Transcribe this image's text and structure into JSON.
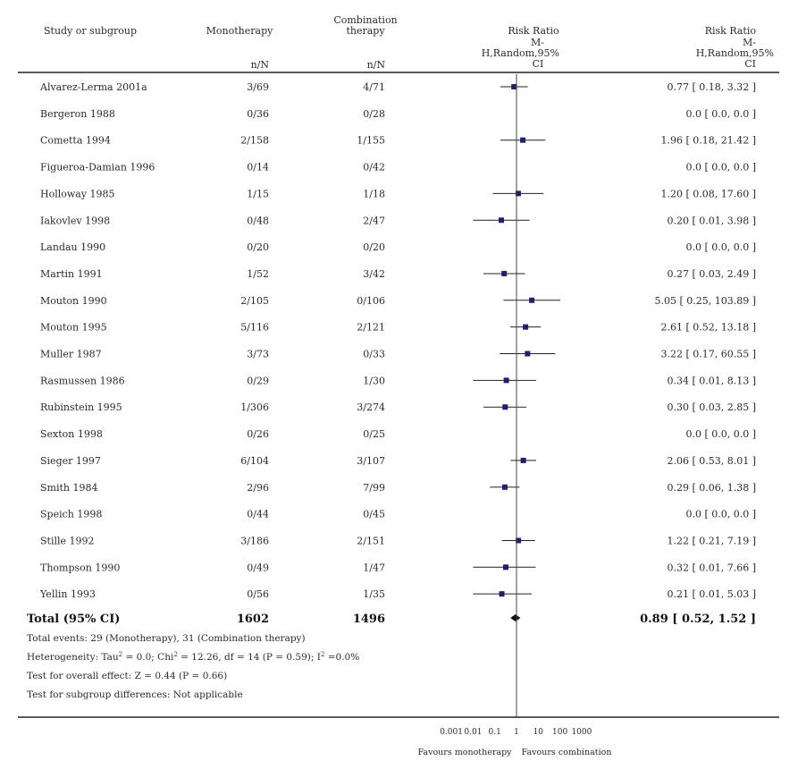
{
  "chart_data": {
    "type": "forest",
    "header": {
      "study": "Study or subgroup",
      "mono": "Monotherapy",
      "combo": [
        "Combination",
        "therapy"
      ],
      "rr_center": [
        "Risk Ratio",
        "M-",
        "H,Random,95%",
        "CI"
      ],
      "rr_right": [
        "Risk Ratio",
        "M-",
        "H,Random,95%",
        "CI"
      ],
      "mono_nN": "n/N",
      "combo_nN": "n/N"
    },
    "studies": [
      {
        "name": "Alvarez-Lerma 2001a",
        "mono": "3/69",
        "combo": "4/71",
        "rr": 0.77,
        "lo": 0.18,
        "hi": 3.32,
        "label": "0.77 [ 0.18, 3.32 ]"
      },
      {
        "name": "Bergeron 1988",
        "mono": "0/36",
        "combo": "0/28",
        "rr": null,
        "lo": null,
        "hi": null,
        "label": "0.0 [ 0.0, 0.0 ]"
      },
      {
        "name": "Cometta 1994",
        "mono": "2/158",
        "combo": "1/155",
        "rr": 1.96,
        "lo": 0.18,
        "hi": 21.42,
        "label": "1.96 [ 0.18, 21.42 ]"
      },
      {
        "name": "Figueroa-Damian 1996",
        "mono": "0/14",
        "combo": "0/42",
        "rr": null,
        "lo": null,
        "hi": null,
        "label": "0.0 [ 0.0, 0.0 ]"
      },
      {
        "name": "Holloway   1985",
        "mono": "1/15",
        "combo": "1/18",
        "rr": 1.2,
        "lo": 0.08,
        "hi": 17.6,
        "label": "1.20 [ 0.08, 17.60 ]"
      },
      {
        "name": "Iakovlev 1998",
        "mono": "0/48",
        "combo": "2/47",
        "rr": 0.2,
        "lo": 0.01,
        "hi": 3.98,
        "label": "0.20 [ 0.01, 3.98 ]"
      },
      {
        "name": "Landau 1990",
        "mono": "0/20",
        "combo": "0/20",
        "rr": null,
        "lo": null,
        "hi": null,
        "label": "0.0 [ 0.0, 0.0 ]"
      },
      {
        "name": "Martin 1991",
        "mono": "1/52",
        "combo": "3/42",
        "rr": 0.27,
        "lo": 0.03,
        "hi": 2.49,
        "label": "0.27 [ 0.03, 2.49 ]"
      },
      {
        "name": "Mouton 1990",
        "mono": "2/105",
        "combo": "0/106",
        "rr": 5.05,
        "lo": 0.25,
        "hi": 103.89,
        "label": "5.05 [ 0.25, 103.89 ]"
      },
      {
        "name": "Mouton 1995",
        "mono": "5/116",
        "combo": "2/121",
        "rr": 2.61,
        "lo": 0.52,
        "hi": 13.18,
        "label": "2.61 [ 0.52, 13.18 ]"
      },
      {
        "name": "Muller 1987",
        "mono": "3/73",
        "combo": "0/33",
        "rr": 3.22,
        "lo": 0.17,
        "hi": 60.55,
        "label": "3.22 [ 0.17, 60.55 ]"
      },
      {
        "name": "Rasmussen 1986",
        "mono": "0/29",
        "combo": "1/30",
        "rr": 0.34,
        "lo": 0.01,
        "hi": 8.13,
        "label": "0.34 [ 0.01, 8.13 ]"
      },
      {
        "name": "Rubinstein 1995",
        "mono": "1/306",
        "combo": "3/274",
        "rr": 0.3,
        "lo": 0.03,
        "hi": 2.85,
        "label": "0.30 [ 0.03, 2.85 ]"
      },
      {
        "name": "Sexton 1998",
        "mono": "0/26",
        "combo": "0/25",
        "rr": null,
        "lo": null,
        "hi": null,
        "label": "0.0 [ 0.0, 0.0 ]"
      },
      {
        "name": "Sieger 1997",
        "mono": "6/104",
        "combo": "3/107",
        "rr": 2.06,
        "lo": 0.53,
        "hi": 8.01,
        "label": "2.06 [ 0.53, 8.01 ]"
      },
      {
        "name": "Smith 1984",
        "mono": "2/96",
        "combo": "7/99",
        "rr": 0.29,
        "lo": 0.06,
        "hi": 1.38,
        "label": "0.29 [ 0.06, 1.38 ]"
      },
      {
        "name": "Speich 1998",
        "mono": "0/44",
        "combo": "0/45",
        "rr": null,
        "lo": null,
        "hi": null,
        "label": "0.0 [ 0.0, 0.0 ]"
      },
      {
        "name": "Stille 1992",
        "mono": "3/186",
        "combo": "2/151",
        "rr": 1.22,
        "lo": 0.21,
        "hi": 7.19,
        "label": "1.22 [ 0.21, 7.19 ]"
      },
      {
        "name": "Thompson   1990",
        "mono": "0/49",
        "combo": "1/47",
        "rr": 0.32,
        "lo": 0.01,
        "hi": 7.66,
        "label": "0.32 [ 0.01, 7.66 ]"
      },
      {
        "name": "Yellin 1993",
        "mono": "0/56",
        "combo": "1/35",
        "rr": 0.21,
        "lo": 0.01,
        "hi": 5.03,
        "label": "0.21 [ 0.01, 5.03 ]"
      }
    ],
    "total": {
      "name": "Total (95% CI)",
      "mono": "1602",
      "combo": "1496",
      "rr": 0.89,
      "lo": 0.52,
      "hi": 1.52,
      "label": "0.89 [ 0.52, 1.52 ]"
    },
    "footnotes": {
      "events": "Total events: 29 (Monotherapy), 31 (Combination therapy)",
      "heterogeneity_pre": "Heterogeneity: Tau",
      "heterogeneity_mid": " = 0.0; Chi",
      "heterogeneity_post": " = 12.26, df = 14 (P = 0.59); I",
      "heterogeneity_end": " =0.0%",
      "sup": "2",
      "overall": "Test for overall effect: Z = 0.44 (P = 0.66)",
      "subgroup": "Test for subgroup differences: Not applicable"
    },
    "axis": {
      "scale": "log",
      "ticks": [
        0.001,
        0.01,
        0.1,
        1,
        10,
        100,
        1000
      ],
      "tick_labels": [
        "0.001",
        "0.01",
        "0.1",
        "1",
        "10",
        "100",
        "1000"
      ],
      "favours_left": "Favours monotherapy",
      "favours_right": "Favours combination"
    },
    "colors": {
      "marker": "#1f1f6e",
      "text": "#2a2a2a",
      "line": "#222222"
    }
  }
}
